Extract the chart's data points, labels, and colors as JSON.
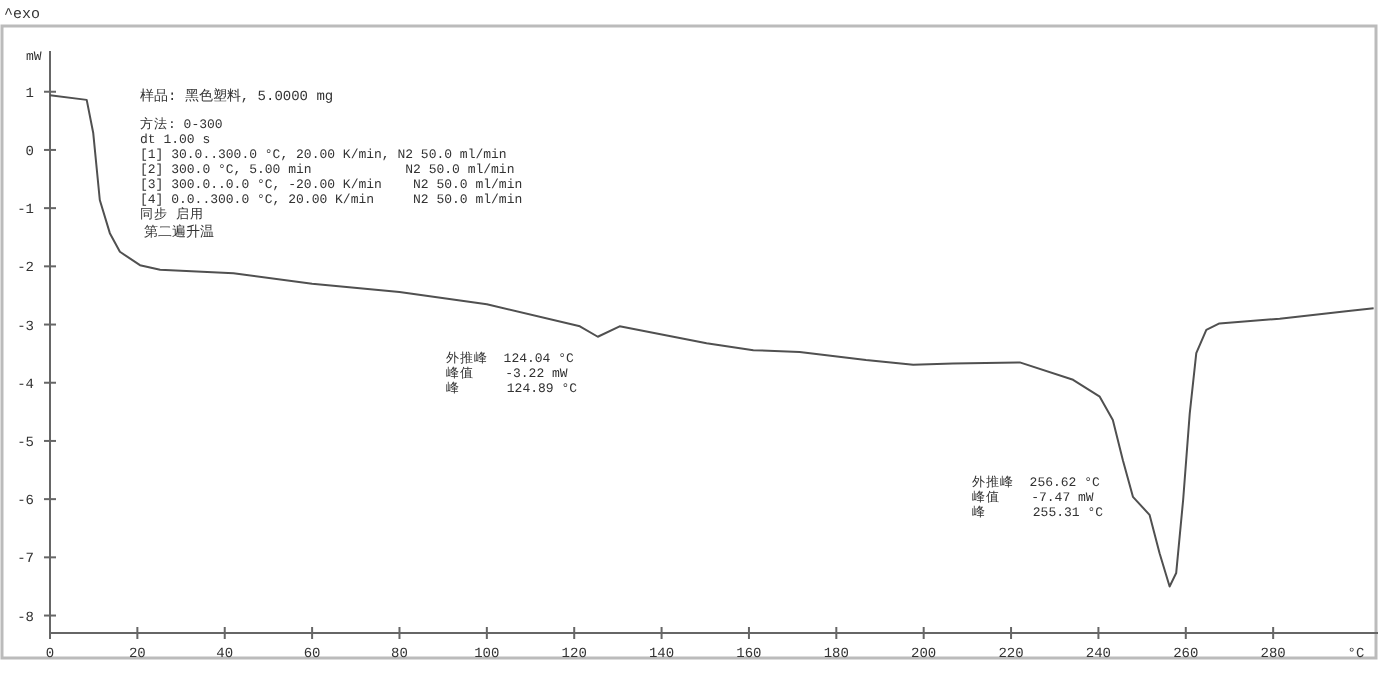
{
  "chart_data": {
    "type": "line",
    "xlabel": "°C",
    "ylabel": "mW",
    "xlim": [
      0,
      304
    ],
    "ylim": [
      -8.3,
      1.7
    ],
    "xticks": [
      0,
      20,
      40,
      60,
      80,
      100,
      120,
      140,
      160,
      180,
      200,
      220,
      240,
      260,
      280
    ],
    "yticks": [
      1,
      0,
      -1,
      -2,
      -3,
      -4,
      -5,
      -6,
      -7,
      -8
    ],
    "grid": false,
    "marker": "none",
    "line_style": "solid",
    "series": [
      {
        "color": "#505050",
        "x": [
          0,
          8.4,
          9.9,
          11.4,
          13.7,
          16,
          20.6,
          25.2,
          42,
          60,
          80,
          100,
          121.3,
          125.4,
          130.4,
          150.3,
          161,
          171.6,
          186.8,
          197.6,
          206.7,
          222,
          234.2,
          240.3,
          243.3,
          245.6,
          247.9,
          251.7,
          254,
          256.3,
          257.8,
          259.4,
          260.9,
          262.4,
          264.7,
          267.7,
          281.5,
          296.7,
          303
        ],
        "values": [
          0.94,
          0.86,
          0.29,
          -0.86,
          -1.43,
          -1.75,
          -1.98,
          -2.06,
          -2.12,
          -2.3,
          -2.44,
          -2.65,
          -3.03,
          -3.21,
          -3.03,
          -3.32,
          -3.44,
          -3.47,
          -3.61,
          -3.69,
          -3.67,
          -3.65,
          -3.95,
          -4.24,
          -4.64,
          -5.33,
          -5.96,
          -6.27,
          -6.93,
          -7.5,
          -7.27,
          -6.01,
          -4.53,
          -3.49,
          -3.09,
          -2.98,
          -2.9,
          -2.77,
          -2.72
        ]
      }
    ],
    "annotations": [
      "^exo",
      "样品: 黑色塑料, 5.0000 mg",
      "方法: 0-300\ndt 1.00 s\n[1] 30.0..300.0 °C, 20.00 K/min, N2 50.0 ml/min\n[2] 300.0 °C, 5.00 min            N2 50.0 ml/min\n[3] 300.0..0.0 °C, -20.00 K/min    N2 50.0 ml/min\n[4] 0.0..300.0 °C, 20.00 K/min     N2 50.0 ml/min\n同步 启用",
      "第二遍升温",
      "外推峰  124.04 °C\n峰值    -3.22 mW\n峰      124.89 °C",
      "外推峰  256.62 °C\n峰值    -7.47 mW\n峰      255.31 °C"
    ]
  }
}
